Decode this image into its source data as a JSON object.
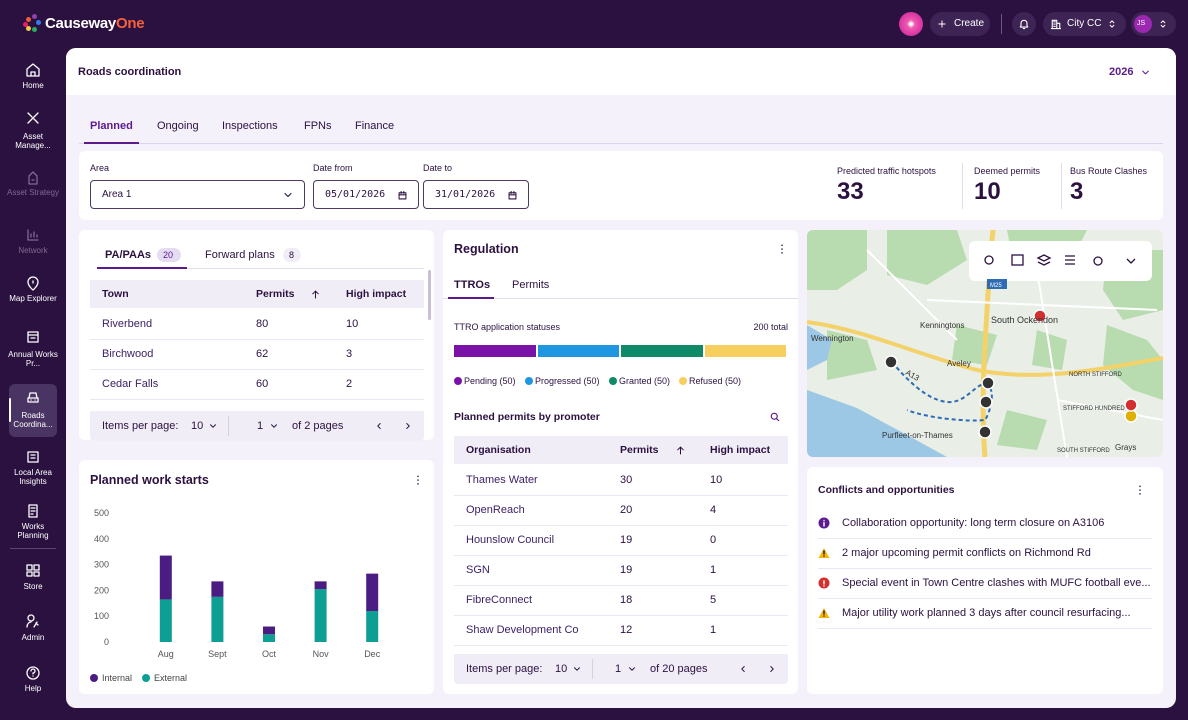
{
  "header": {
    "brand": "Causeway",
    "brand_accent": "One",
    "create": "Create",
    "organisation": "City CC",
    "user_initials": "JS"
  },
  "nav": [
    "Home",
    "Asset Manage...",
    "Asset Strategy",
    "Network",
    "Map Explorer",
    "Annual Works Pr...",
    "Roads Coordina...",
    "Local Area Insights",
    "Works Planning",
    "Store",
    "Admin",
    "Help"
  ],
  "page": {
    "title": "Roads coordination",
    "year": "2026"
  },
  "tabs": [
    "Planned",
    "Ongoing",
    "Inspections",
    "FPNs",
    "Finance"
  ],
  "filters": {
    "area_label": "Area",
    "area": "Area 1",
    "date_from_label": "Date from",
    "date_from": "05/01/2026",
    "date_to_label": "Date to",
    "date_to": "31/01/2026"
  },
  "stats": [
    {
      "label": "Predicted traffic hotspots",
      "value": 33
    },
    {
      "label": "Deemed permits",
      "value": 10
    },
    {
      "label": "Bus Route Clashes",
      "value": 3
    }
  ],
  "pa_table": {
    "tabs": [
      {
        "label": "PA/PAAs",
        "count": 20
      },
      {
        "label": "Forward plans",
        "count": 8
      }
    ],
    "columns": [
      "Town",
      "Permits",
      "High impact"
    ],
    "rows": [
      [
        "Riverbend",
        80,
        10
      ],
      [
        "Birchwood",
        62,
        3
      ],
      [
        "Cedar Falls",
        60,
        2
      ]
    ],
    "pagination": {
      "label": "Items per page:",
      "per_page": 10,
      "page": 1,
      "pages": "of 2 pages"
    }
  },
  "chart_data": {
    "type": "bar",
    "stacked": true,
    "title": "Planned work starts",
    "categories": [
      "Aug",
      "Sept",
      "Oct",
      "Nov",
      "Dec"
    ],
    "series": [
      {
        "name": "Internal",
        "color": "#4b1d83",
        "values": [
          170,
          60,
          30,
          30,
          145
        ]
      },
      {
        "name": "External",
        "color": "#0e9f94",
        "values": [
          165,
          175,
          30,
          205,
          120
        ]
      }
    ],
    "ylim": [
      0,
      500
    ],
    "yticks": [
      0,
      100,
      200,
      300,
      400,
      500
    ],
    "grid": false
  },
  "regulation": {
    "title": "Regulation",
    "tabs": [
      "TTROs",
      "Permits"
    ],
    "status_title": "TTRO application statuses",
    "total": "200 total",
    "statuses": [
      {
        "label": "Pending (50)",
        "value": 50,
        "color": "#7b12a8"
      },
      {
        "label": "Progressed (50)",
        "value": 50,
        "color": "#1e96e0"
      },
      {
        "label": "Granted (50)",
        "value": 50,
        "color": "#0f8a68"
      },
      {
        "label": "Refused (50)",
        "value": 50,
        "color": "#f7cf5e"
      }
    ],
    "promoter_title": "Planned permits by promoter",
    "columns": [
      "Organisation",
      "Permits",
      "High impact"
    ],
    "rows": [
      [
        "Thames Water",
        30,
        10
      ],
      [
        "OpenReach",
        20,
        4
      ],
      [
        "Hounslow Council",
        19,
        0
      ],
      [
        "SGN",
        19,
        1
      ],
      [
        "FibreConnect",
        18,
        5
      ],
      [
        "Shaw Development Co",
        12,
        1
      ]
    ],
    "pagination": {
      "label": "Items per page:",
      "per_page": 10,
      "page": 1,
      "pages": "of 20 pages"
    }
  },
  "map": {
    "labels": [
      "Wennington",
      "Kenningtons",
      "South Ockendon",
      "Aveley",
      "A13",
      "M25",
      "NORTH STIFFORD",
      "STIFFORD HUNDRED",
      "Purfleet-on-Thames",
      "SOUTH STIFFORD",
      "Grays"
    ]
  },
  "conflicts": {
    "title": "Conflicts and opportunities",
    "items": [
      {
        "kind": "info",
        "text": "Collaboration opportunity: long term closure on A3106"
      },
      {
        "kind": "warning",
        "text": "2 major upcoming permit conflicts on Richmond Rd"
      },
      {
        "kind": "error",
        "text": "Special event in Town Centre clashes with MUFC football eve..."
      },
      {
        "kind": "warning",
        "text": "Major utility work planned 3 days after council resurfacing..."
      }
    ]
  }
}
